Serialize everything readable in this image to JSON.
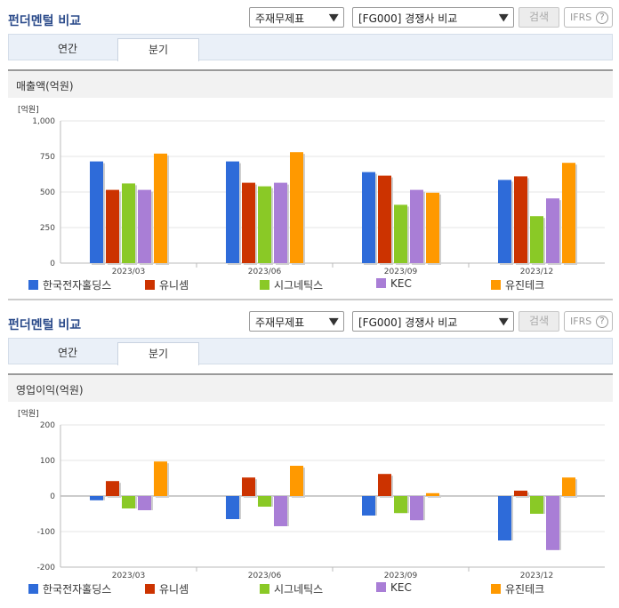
{
  "colors": {
    "series": [
      "#2e6bd9",
      "#cc3300",
      "#8ac926",
      "#a97ed6",
      "#ff9900"
    ]
  },
  "panels": [
    {
      "title": "펀더멘털 비교",
      "select_1": "주재무제표",
      "select_2": "[FG000] 경쟁사 비교",
      "search_label": "검색",
      "ifrs_label": "IFRS",
      "help_glyph": "?",
      "caret_glyph": "▼",
      "tabs": [
        "연간",
        "분기"
      ],
      "active_tab": "분기",
      "section_title": "매출액(억원)",
      "chart_data": {
        "type": "bar",
        "unit_label": "[억원]",
        "categories": [
          "2023/03",
          "2023/06",
          "2023/09",
          "2023/12"
        ],
        "ylim": [
          0,
          1000
        ],
        "yticks": [
          0,
          250,
          500,
          750,
          1000
        ],
        "ytick_labels": [
          "0",
          "250",
          "500",
          "750",
          "1,000"
        ],
        "legend": "bottom",
        "series": [
          {
            "name": "한국전자홀딩스",
            "values": [
              715,
              715,
              640,
              585
            ]
          },
          {
            "name": "유니셈",
            "values": [
              515,
              565,
              615,
              610
            ]
          },
          {
            "name": "시그네틱스",
            "values": [
              560,
              540,
              410,
              330
            ]
          },
          {
            "name": "KEC",
            "values": [
              515,
              565,
              515,
              455
            ]
          },
          {
            "name": "유진테크",
            "values": [
              770,
              780,
              495,
              705
            ]
          }
        ]
      }
    },
    {
      "title": "펀더멘털 비교",
      "select_1": "주재무제표",
      "select_2": "[FG000] 경쟁사 비교",
      "search_label": "검색",
      "ifrs_label": "IFRS",
      "help_glyph": "?",
      "caret_glyph": "▼",
      "tabs": [
        "연간",
        "분기"
      ],
      "active_tab": "분기",
      "section_title": "영업이익(억원)",
      "chart_data": {
        "type": "bar",
        "unit_label": "[억원]",
        "categories": [
          "2023/03",
          "2023/06",
          "2023/09",
          "2023/12"
        ],
        "ylim": [
          -200,
          200
        ],
        "yticks": [
          -200,
          -100,
          0,
          100,
          200
        ],
        "ytick_labels": [
          "-200",
          "-100",
          "0",
          "100",
          "200"
        ],
        "legend": "bottom",
        "series": [
          {
            "name": "한국전자홀딩스",
            "values": [
              -12,
              -65,
              -55,
              -125
            ]
          },
          {
            "name": "유니셈",
            "values": [
              42,
              52,
              62,
              15
            ]
          },
          {
            "name": "시그네틱스",
            "values": [
              -35,
              -30,
              -48,
              -50
            ]
          },
          {
            "name": "KEC",
            "values": [
              -40,
              -85,
              -68,
              -152
            ]
          },
          {
            "name": "유진테크",
            "values": [
              97,
              85,
              8,
              52
            ]
          }
        ]
      }
    }
  ]
}
